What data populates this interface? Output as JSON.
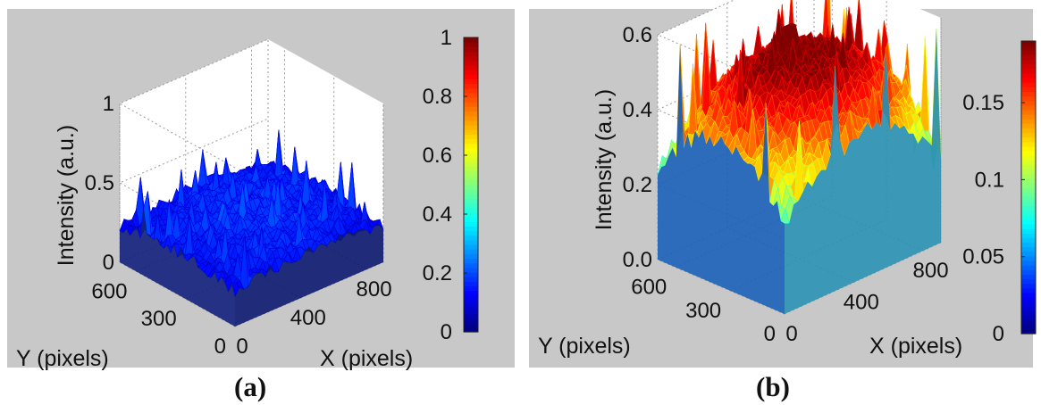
{
  "chart_data": [
    {
      "type": "surface",
      "panel_label": "(a)",
      "zlabel": "Intensity (a.u.)",
      "xlabel": "X (pixels)",
      "ylabel": "Y (pixels)",
      "x_ticks": [
        "0",
        "400",
        "800"
      ],
      "y_ticks": [
        "0",
        "300",
        "600"
      ],
      "z_ticks": [
        "0",
        "0.5",
        "1"
      ],
      "xlim": [
        0,
        900
      ],
      "ylim": [
        0,
        700
      ],
      "zlim": [
        0,
        1
      ],
      "colorbar_ticks": [
        "0",
        "0.2",
        "0.4",
        "0.6",
        "0.8",
        "1"
      ],
      "colorbar_range": [
        0,
        1
      ],
      "colormap": "jet",
      "surface_profile": {
        "base_level": 0.22,
        "center_peak": 0.32,
        "noise_spike_max": 0.55
      },
      "grid": true
    },
    {
      "type": "surface",
      "panel_label": "(b)",
      "zlabel": "Intensity (a.u.)",
      "xlabel": "X (pixels)",
      "ylabel": "Y (pixels)",
      "x_ticks": [
        "0",
        "400",
        "800"
      ],
      "y_ticks": [
        "0",
        "300",
        "600"
      ],
      "z_ticks": [
        "0.0",
        "0.2",
        "0.4",
        "0.6"
      ],
      "xlim": [
        0,
        900
      ],
      "ylim": [
        0,
        700
      ],
      "zlim": [
        0,
        0.6
      ],
      "colorbar_ticks": [
        "0",
        "0.05",
        "0.1",
        "0.15"
      ],
      "colorbar_range": [
        0,
        0.19
      ],
      "colormap": "jet",
      "surface_profile": {
        "base_level": 0.24,
        "center_peak": 0.54,
        "noise_spike_max": 0.66
      },
      "grid": true
    }
  ],
  "colors": {
    "background": "#c8c8c8",
    "axes_face": "#ffffff",
    "grid": "#9a9a9a",
    "text": "#111111"
  }
}
